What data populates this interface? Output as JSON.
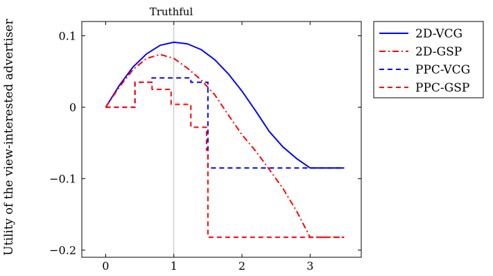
{
  "chart_data": {
    "type": "line",
    "title": "Truthful",
    "xlabel": "",
    "ylabel": "Utility of the view-interested advertiser",
    "xlim": [
      -0.35,
      3.75
    ],
    "ylim": [
      -0.21,
      0.12
    ],
    "x_ticks": [
      0,
      1,
      2,
      3
    ],
    "x_tick_labels": [
      "0",
      "1",
      "2",
      "3"
    ],
    "y_ticks": [
      -0.2,
      -0.1,
      0,
      0.1
    ],
    "y_tick_labels": [
      "−0.2",
      "−0.1",
      "0",
      "0.1"
    ],
    "grid": false,
    "reference_line_x": 1,
    "legend_position": "outside-top-right",
    "series": [
      {
        "name": "2D-VCG",
        "color": "#0000ff",
        "style": "solid",
        "points": [
          [
            0,
            0
          ],
          [
            0.2,
            0.0305
          ],
          [
            0.4,
            0.0562
          ],
          [
            0.6,
            0.0747
          ],
          [
            0.8,
            0.0867
          ],
          [
            1.0,
            0.091
          ],
          [
            1.2,
            0.0887
          ],
          [
            1.4,
            0.0807
          ],
          [
            1.6,
            0.0666
          ],
          [
            1.8,
            0.0467
          ],
          [
            2.0,
            0.0225
          ],
          [
            2.2,
            -0.005
          ],
          [
            2.4,
            -0.0339
          ],
          [
            2.6,
            -0.0555
          ],
          [
            2.8,
            -0.0717
          ],
          [
            3.0,
            -0.085
          ],
          [
            3.5,
            -0.085
          ]
        ]
      },
      {
        "name": "2D-GSP",
        "color": "#ff0000",
        "style": "dashdot",
        "points": [
          [
            0,
            0
          ],
          [
            0.2,
            0.0281
          ],
          [
            0.4,
            0.0526
          ],
          [
            0.6,
            0.0684
          ],
          [
            0.8,
            0.0738
          ],
          [
            1.0,
            0.0684
          ],
          [
            1.2,
            0.0546
          ],
          [
            1.4,
            0.0383
          ],
          [
            1.6,
            0.0175
          ],
          [
            1.8,
            -0.0109
          ],
          [
            2.0,
            -0.0385
          ],
          [
            2.2,
            -0.0612
          ],
          [
            2.4,
            -0.087
          ],
          [
            2.6,
            -0.1136
          ],
          [
            2.8,
            -0.1451
          ],
          [
            3.0,
            -0.182
          ],
          [
            3.5,
            -0.182
          ]
        ]
      },
      {
        "name": "PPC-VCG",
        "color": "#0000ff",
        "style": "dashed",
        "points": [
          [
            0,
            0
          ],
          [
            0.43,
            0
          ],
          [
            0.43,
            0.035
          ],
          [
            0.68,
            0.035
          ],
          [
            0.68,
            0.041
          ],
          [
            1.25,
            0.041
          ],
          [
            1.25,
            0.035
          ],
          [
            1.5,
            0.035
          ],
          [
            1.5,
            -0.085
          ],
          [
            3.5,
            -0.085
          ]
        ]
      },
      {
        "name": "PPC-GSP",
        "color": "#ff0000",
        "style": "dashed",
        "points": [
          [
            0,
            0
          ],
          [
            0.43,
            0
          ],
          [
            0.43,
            0.035
          ],
          [
            0.68,
            0.035
          ],
          [
            0.68,
            0.025
          ],
          [
            0.96,
            0.025
          ],
          [
            0.96,
            0.004
          ],
          [
            1.25,
            0.004
          ],
          [
            1.25,
            -0.028
          ],
          [
            1.48,
            -0.028
          ],
          [
            1.48,
            -0.06
          ],
          [
            1.5,
            -0.06
          ],
          [
            1.5,
            -0.182
          ],
          [
            3.5,
            -0.182
          ]
        ]
      }
    ]
  }
}
